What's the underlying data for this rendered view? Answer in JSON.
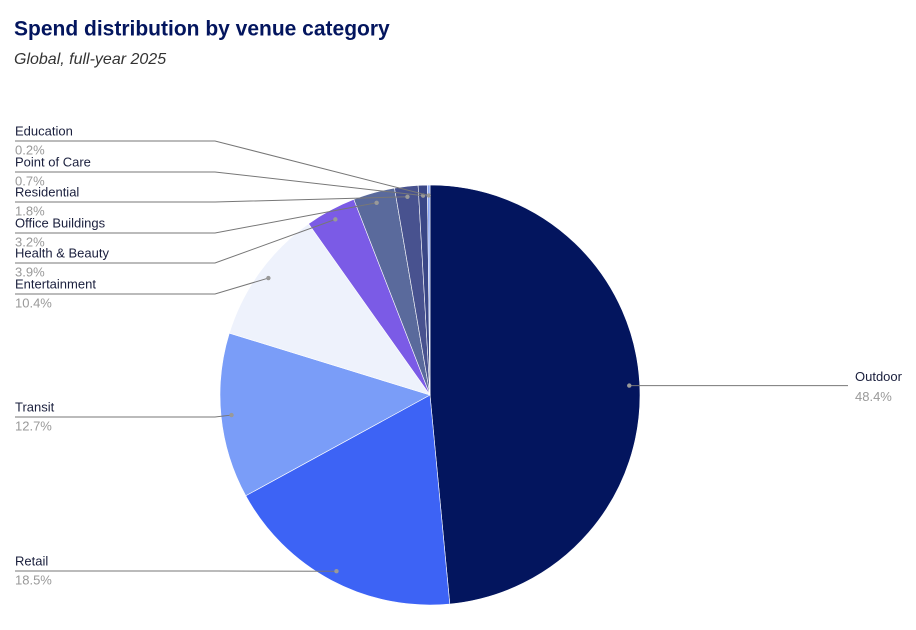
{
  "chart_data": {
    "type": "pie",
    "title": "Spend distribution by venue category",
    "subtitle": "Global, full-year 2025",
    "categories": [
      "Outdoor",
      "Retail",
      "Transit",
      "Entertainment",
      "Health & Beauty",
      "Office Buildings",
      "Residential",
      "Point of Care",
      "Education"
    ],
    "values": [
      48.4,
      18.5,
      12.7,
      10.4,
      3.9,
      3.2,
      1.8,
      0.7,
      0.2
    ],
    "value_labels": [
      "48.4%",
      "18.5%",
      "12.7%",
      "10.4%",
      "3.9%",
      "3.2%",
      "1.8%",
      "0.7%",
      "0.2%"
    ],
    "colors": [
      "#03155e",
      "#3d63f5",
      "#7a9df8",
      "#eef2fc",
      "#7b5be6",
      "#5a6a9c",
      "#48528f",
      "#3a4787",
      "#8aa6f5"
    ]
  }
}
